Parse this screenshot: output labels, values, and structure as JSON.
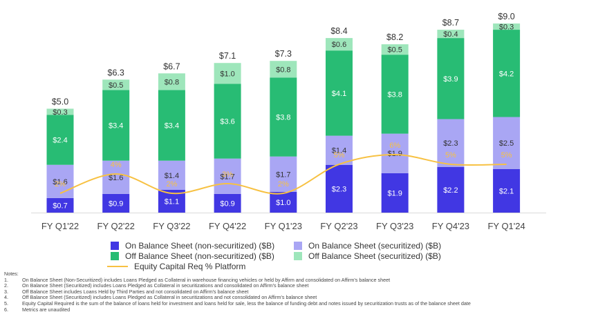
{
  "chart_data": {
    "type": "bar",
    "stacked": true,
    "categories": [
      "FY Q1'22",
      "FY Q2'22",
      "FY Q3'22",
      "FY Q4'22",
      "FY Q1'23",
      "FY Q2'23",
      "FY Q3'23",
      "FY Q4'23",
      "FY Q1'24"
    ],
    "series": [
      {
        "name": "On Balance Sheet (non-securitized) ($B)",
        "color": "#4137e3",
        "values": [
          0.7,
          0.9,
          1.1,
          0.9,
          1.0,
          2.3,
          1.9,
          2.2,
          2.1
        ],
        "labels": [
          "$0.7",
          "$0.9",
          "$1.1",
          "$0.9",
          "$1.0",
          "$2.3",
          "$1.9",
          "$2.2",
          "$2.1"
        ]
      },
      {
        "name": "On Balance Sheet (securitized) ($B)",
        "color": "#a9a6f4",
        "values": [
          1.6,
          1.6,
          1.4,
          1.7,
          1.7,
          1.4,
          1.9,
          2.3,
          2.5
        ],
        "labels": [
          "$1.6",
          "$1.6",
          "$1.4",
          "$1.7",
          "$1.7",
          "$1.4",
          "$1.9",
          "$2.3",
          "$2.5"
        ]
      },
      {
        "name": "Off Balance Sheet (non-securitized) ($B)",
        "color": "#28bc74",
        "values": [
          2.4,
          3.4,
          3.4,
          3.6,
          3.8,
          4.1,
          3.8,
          3.9,
          4.2
        ],
        "labels": [
          "$2.4",
          "$3.4",
          "$3.4",
          "$3.6",
          "$3.8",
          "$4.1",
          "$3.8",
          "$3.9",
          "$4.2"
        ]
      },
      {
        "name": "Off Balance Sheet (securitized) ($B)",
        "color": "#9ee6bb",
        "values": [
          0.3,
          0.5,
          0.8,
          1.0,
          0.8,
          0.6,
          0.5,
          0.4,
          0.3
        ],
        "labels": [
          "$0.3",
          "$0.5",
          "$0.8",
          "$1.0",
          "$0.8",
          "$0.6",
          "$0.5",
          "$0.4",
          "$0.3"
        ]
      }
    ],
    "totals": [
      "$5.0",
      "$6.3",
      "$6.7",
      "$7.1",
      "$7.3",
      "$8.4",
      "$8.2",
      "$8.7",
      "$9.0"
    ],
    "line": {
      "name": "Equity Capital Req % Platform",
      "color": "#f7c142",
      "values": [
        2,
        4,
        2,
        3,
        2,
        5,
        6,
        5,
        5
      ],
      "labels": [
        "2%",
        "4%",
        "2%",
        "3%",
        "2%",
        "5%",
        "6%",
        "5%",
        "5%"
      ]
    },
    "ylim": [
      0,
      9.3
    ],
    "line_ylim": [
      0,
      20
    ],
    "title": "",
    "xlabel": "",
    "ylabel": "",
    "legend_position": "bottom"
  },
  "notes": {
    "heading": "Notes:",
    "items": [
      {
        "num": "1.",
        "text": "On Balance Sheet (Non-Securitized) includes Loans Pledged as Collateral in warehouse financing vehicles or held by Affirm and consolidated on Affirm's balance sheet"
      },
      {
        "num": "2.",
        "text": "On Balance Sheet (Securitized) includes Loans Pledged as Collateral in securitizations and consolidated on Affirm's balance sheet"
      },
      {
        "num": "3.",
        "text": "Off Balance Sheet includes Loans Held by Third Parties and not consolidated on Affirm's balance sheet"
      },
      {
        "num": "4.",
        "text": "Off Balance Sheet (Securitized) includes Loans Pledged as Collateral in securitizations and not consolidated on Affirm's balance sheet"
      },
      {
        "num": "5.",
        "text": "Equity Capital Required is the sum of the balance of loans held for investment and loans held for sale, less the balance of funding debt and notes issued by securitization trusts as of the balance sheet date"
      },
      {
        "num": "6.",
        "text": "Metrics are unaudited"
      }
    ]
  }
}
